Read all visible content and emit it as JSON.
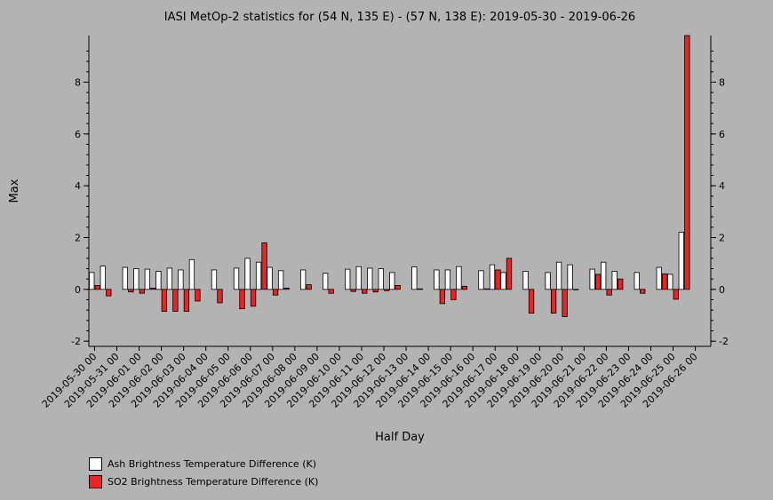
{
  "chart_data": {
    "type": "bar",
    "title": "IASI MetOp-2 statistics for (54 N, 135 E) - (57 N, 138 E): 2019-05-30 - 2019-06-26",
    "xlabel": "Half Day",
    "ylabel": "Max",
    "ylim": [
      -2.2,
      9.8
    ],
    "yticks": [
      -2,
      0,
      2,
      4,
      6,
      8
    ],
    "x_tick_labels": [
      "2019-05-30 00",
      "2019-05-31 00",
      "2019-06-01 00",
      "2019-06-02 00",
      "2019-06-03 00",
      "2019-06-04 00",
      "2019-06-05 00",
      "2019-06-06 00",
      "2019-06-07 00",
      "2019-06-08 00",
      "2019-06-09 00",
      "2019-06-10 00",
      "2019-06-11 00",
      "2019-06-12 00",
      "2019-06-13 00",
      "2019-06-14 00",
      "2019-06-15 00",
      "2019-06-16 00",
      "2019-06-17 00",
      "2019-06-18 00",
      "2019-06-19 00",
      "2019-06-20 00",
      "2019-06-21 00",
      "2019-06-22 00",
      "2019-06-23 00",
      "2019-06-24 00",
      "2019-06-25 00",
      "2019-06-26 00"
    ],
    "series": [
      {
        "name": "Ash Brightness Temperature Difference (K)",
        "color": "#ffffff",
        "values": [
          0.65,
          0.9,
          null,
          0.85,
          0.8,
          0.78,
          0.7,
          0.82,
          0.75,
          1.15,
          null,
          0.75,
          null,
          0.82,
          1.2,
          1.05,
          0.85,
          0.72,
          null,
          0.75,
          null,
          0.62,
          null,
          0.78,
          0.88,
          0.82,
          0.8,
          0.65,
          null,
          0.87,
          null,
          0.75,
          0.75,
          0.88,
          null,
          0.72,
          0.95,
          0.65,
          null,
          0.7,
          null,
          0.65,
          1.05,
          0.95,
          null,
          0.78,
          1.05,
          0.7,
          null,
          0.65,
          null,
          0.85,
          0.58,
          2.2
        ]
      },
      {
        "name": "SO2 Brightness Temperature Difference (K)",
        "color": "#ee2222",
        "values": [
          0.15,
          -0.25,
          null,
          -0.1,
          -0.15,
          0.05,
          -0.85,
          -0.85,
          -0.85,
          -0.45,
          null,
          -0.52,
          null,
          -0.75,
          -0.65,
          1.8,
          -0.22,
          0.05,
          null,
          0.18,
          null,
          -0.15,
          null,
          -0.08,
          -0.15,
          -0.1,
          -0.05,
          0.15,
          null,
          0.02,
          null,
          -0.55,
          -0.4,
          0.12,
          null,
          0.02,
          0.75,
          1.2,
          null,
          -0.92,
          null,
          -0.92,
          -1.05,
          0.0,
          null,
          0.58,
          -0.22,
          0.4,
          null,
          -0.15,
          null,
          0.6,
          -0.38,
          9.8
        ]
      }
    ]
  }
}
